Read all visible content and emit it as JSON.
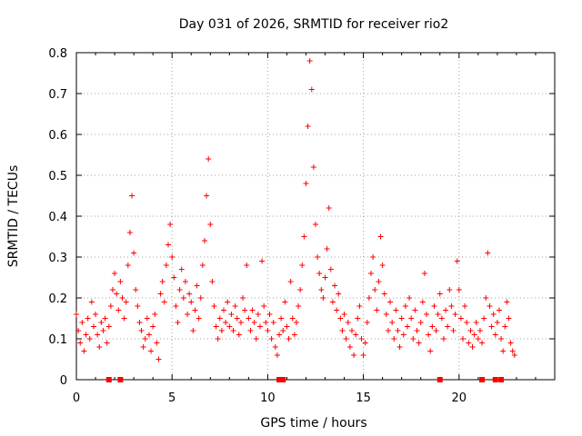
{
  "chart_data": {
    "type": "scatter",
    "title": "Day 031 of 2026, SRMTID for receiver rio2",
    "xlabel": "GPS time / hours",
    "ylabel": "SRMTID / TECUs",
    "xlim": [
      0,
      25
    ],
    "ylim": [
      0,
      0.8
    ],
    "x_ticks": [
      0,
      5,
      10,
      15,
      20
    ],
    "y_ticks": [
      0,
      0.1,
      0.2,
      0.3,
      0.4,
      0.5,
      0.6,
      0.7,
      0.8
    ],
    "x_tick_labels": [
      "0",
      "5",
      "10",
      "15",
      "20"
    ],
    "y_tick_labels": [
      "0",
      "0.1",
      "0.2",
      "0.3",
      "0.4",
      "0.5",
      "0.6",
      "0.7",
      "0.8"
    ],
    "grid": true,
    "marker": "+",
    "color": "#ff0000",
    "baseline_marks": [
      1.7,
      2.3,
      10.6,
      10.8,
      19.0,
      21.2,
      21.9,
      22.2
    ],
    "series": [
      {
        "name": "SRMTID",
        "points": [
          [
            0.0,
            0.16
          ],
          [
            0.1,
            0.12
          ],
          [
            0.2,
            0.09
          ],
          [
            0.3,
            0.14
          ],
          [
            0.4,
            0.07
          ],
          [
            0.5,
            0.11
          ],
          [
            0.6,
            0.15
          ],
          [
            0.7,
            0.1
          ],
          [
            0.8,
            0.19
          ],
          [
            0.9,
            0.13
          ],
          [
            1.0,
            0.16
          ],
          [
            1.1,
            0.11
          ],
          [
            1.2,
            0.08
          ],
          [
            1.3,
            0.14
          ],
          [
            1.4,
            0.12
          ],
          [
            1.5,
            0.15
          ],
          [
            1.6,
            0.09
          ],
          [
            1.7,
            0.13
          ],
          [
            1.8,
            0.18
          ],
          [
            1.9,
            0.22
          ],
          [
            2.0,
            0.26
          ],
          [
            2.1,
            0.21
          ],
          [
            2.2,
            0.17
          ],
          [
            2.3,
            0.24
          ],
          [
            2.4,
            0.2
          ],
          [
            2.5,
            0.15
          ],
          [
            2.6,
            0.19
          ],
          [
            2.7,
            0.28
          ],
          [
            2.8,
            0.36
          ],
          [
            2.9,
            0.45
          ],
          [
            3.0,
            0.31
          ],
          [
            3.1,
            0.22
          ],
          [
            3.2,
            0.18
          ],
          [
            3.3,
            0.14
          ],
          [
            3.4,
            0.12
          ],
          [
            3.5,
            0.08
          ],
          [
            3.6,
            0.1
          ],
          [
            3.7,
            0.15
          ],
          [
            3.8,
            0.11
          ],
          [
            3.9,
            0.07
          ],
          [
            4.0,
            0.13
          ],
          [
            4.1,
            0.16
          ],
          [
            4.2,
            0.09
          ],
          [
            4.3,
            0.05
          ],
          [
            4.4,
            0.21
          ],
          [
            4.5,
            0.24
          ],
          [
            4.6,
            0.19
          ],
          [
            4.7,
            0.28
          ],
          [
            4.8,
            0.33
          ],
          [
            4.9,
            0.38
          ],
          [
            5.0,
            0.3
          ],
          [
            5.1,
            0.25
          ],
          [
            5.2,
            0.18
          ],
          [
            5.3,
            0.14
          ],
          [
            5.4,
            0.22
          ],
          [
            5.5,
            0.27
          ],
          [
            5.6,
            0.2
          ],
          [
            5.7,
            0.24
          ],
          [
            5.8,
            0.16
          ],
          [
            5.9,
            0.21
          ],
          [
            6.0,
            0.19
          ],
          [
            6.1,
            0.12
          ],
          [
            6.2,
            0.17
          ],
          [
            6.3,
            0.23
          ],
          [
            6.4,
            0.15
          ],
          [
            6.5,
            0.2
          ],
          [
            6.6,
            0.28
          ],
          [
            6.7,
            0.34
          ],
          [
            6.8,
            0.45
          ],
          [
            6.9,
            0.54
          ],
          [
            7.0,
            0.38
          ],
          [
            7.1,
            0.24
          ],
          [
            7.2,
            0.18
          ],
          [
            7.3,
            0.13
          ],
          [
            7.4,
            0.1
          ],
          [
            7.5,
            0.15
          ],
          [
            7.6,
            0.12
          ],
          [
            7.7,
            0.17
          ],
          [
            7.8,
            0.14
          ],
          [
            7.9,
            0.19
          ],
          [
            8.0,
            0.13
          ],
          [
            8.1,
            0.16
          ],
          [
            8.2,
            0.12
          ],
          [
            8.3,
            0.18
          ],
          [
            8.4,
            0.15
          ],
          [
            8.5,
            0.11
          ],
          [
            8.6,
            0.14
          ],
          [
            8.7,
            0.2
          ],
          [
            8.8,
            0.17
          ],
          [
            8.9,
            0.28
          ],
          [
            9.0,
            0.15
          ],
          [
            9.1,
            0.12
          ],
          [
            9.2,
            0.17
          ],
          [
            9.3,
            0.14
          ],
          [
            9.4,
            0.1
          ],
          [
            9.5,
            0.16
          ],
          [
            9.6,
            0.13
          ],
          [
            9.7,
            0.29
          ],
          [
            9.8,
            0.18
          ],
          [
            9.9,
            0.14
          ],
          [
            10.0,
            0.12
          ],
          [
            10.1,
            0.16
          ],
          [
            10.2,
            0.1
          ],
          [
            10.3,
            0.14
          ],
          [
            10.4,
            0.08
          ],
          [
            10.5,
            0.06
          ],
          [
            10.6,
            0.11
          ],
          [
            10.7,
            0.15
          ],
          [
            10.8,
            0.12
          ],
          [
            10.9,
            0.19
          ],
          [
            11.0,
            0.13
          ],
          [
            11.1,
            0.1
          ],
          [
            11.2,
            0.24
          ],
          [
            11.3,
            0.15
          ],
          [
            11.4,
            0.11
          ],
          [
            11.5,
            0.14
          ],
          [
            11.6,
            0.18
          ],
          [
            11.7,
            0.22
          ],
          [
            11.8,
            0.28
          ],
          [
            11.9,
            0.35
          ],
          [
            12.0,
            0.48
          ],
          [
            12.1,
            0.62
          ],
          [
            12.2,
            0.78
          ],
          [
            12.3,
            0.71
          ],
          [
            12.4,
            0.52
          ],
          [
            12.5,
            0.38
          ],
          [
            12.6,
            0.3
          ],
          [
            12.7,
            0.26
          ],
          [
            12.8,
            0.22
          ],
          [
            12.9,
            0.2
          ],
          [
            13.0,
            0.25
          ],
          [
            13.1,
            0.32
          ],
          [
            13.2,
            0.42
          ],
          [
            13.3,
            0.27
          ],
          [
            13.4,
            0.19
          ],
          [
            13.5,
            0.23
          ],
          [
            13.6,
            0.17
          ],
          [
            13.7,
            0.21
          ],
          [
            13.8,
            0.15
          ],
          [
            13.9,
            0.12
          ],
          [
            14.0,
            0.16
          ],
          [
            14.1,
            0.1
          ],
          [
            14.2,
            0.14
          ],
          [
            14.3,
            0.08
          ],
          [
            14.4,
            0.12
          ],
          [
            14.5,
            0.06
          ],
          [
            14.6,
            0.11
          ],
          [
            14.7,
            0.15
          ],
          [
            14.8,
            0.18
          ],
          [
            14.9,
            0.1
          ],
          [
            15.0,
            0.06
          ],
          [
            15.1,
            0.09
          ],
          [
            15.2,
            0.14
          ],
          [
            15.3,
            0.2
          ],
          [
            15.4,
            0.26
          ],
          [
            15.5,
            0.3
          ],
          [
            15.6,
            0.22
          ],
          [
            15.7,
            0.17
          ],
          [
            15.8,
            0.24
          ],
          [
            15.9,
            0.35
          ],
          [
            16.0,
            0.28
          ],
          [
            16.1,
            0.21
          ],
          [
            16.2,
            0.16
          ],
          [
            16.3,
            0.12
          ],
          [
            16.4,
            0.19
          ],
          [
            16.5,
            0.14
          ],
          [
            16.6,
            0.1
          ],
          [
            16.7,
            0.17
          ],
          [
            16.8,
            0.12
          ],
          [
            16.9,
            0.08
          ],
          [
            17.0,
            0.15
          ],
          [
            17.1,
            0.11
          ],
          [
            17.2,
            0.18
          ],
          [
            17.3,
            0.13
          ],
          [
            17.4,
            0.2
          ],
          [
            17.5,
            0.15
          ],
          [
            17.6,
            0.1
          ],
          [
            17.7,
            0.17
          ],
          [
            17.8,
            0.12
          ],
          [
            17.9,
            0.09
          ],
          [
            18.0,
            0.14
          ],
          [
            18.1,
            0.19
          ],
          [
            18.2,
            0.26
          ],
          [
            18.3,
            0.16
          ],
          [
            18.4,
            0.11
          ],
          [
            18.5,
            0.07
          ],
          [
            18.6,
            0.13
          ],
          [
            18.7,
            0.18
          ],
          [
            18.8,
            0.12
          ],
          [
            18.9,
            0.16
          ],
          [
            19.0,
            0.21
          ],
          [
            19.1,
            0.15
          ],
          [
            19.2,
            0.1
          ],
          [
            19.3,
            0.17
          ],
          [
            19.4,
            0.13
          ],
          [
            19.5,
            0.22
          ],
          [
            19.6,
            0.18
          ],
          [
            19.7,
            0.12
          ],
          [
            19.8,
            0.16
          ],
          [
            19.9,
            0.29
          ],
          [
            20.0,
            0.22
          ],
          [
            20.1,
            0.15
          ],
          [
            20.2,
            0.1
          ],
          [
            20.3,
            0.18
          ],
          [
            20.4,
            0.14
          ],
          [
            20.5,
            0.09
          ],
          [
            20.6,
            0.12
          ],
          [
            20.7,
            0.08
          ],
          [
            20.8,
            0.11
          ],
          [
            20.9,
            0.14
          ],
          [
            21.0,
            0.1
          ],
          [
            21.1,
            0.12
          ],
          [
            21.2,
            0.09
          ],
          [
            21.3,
            0.15
          ],
          [
            21.4,
            0.2
          ],
          [
            21.5,
            0.31
          ],
          [
            21.6,
            0.18
          ],
          [
            21.7,
            0.13
          ],
          [
            21.8,
            0.16
          ],
          [
            21.9,
            0.11
          ],
          [
            22.0,
            0.14
          ],
          [
            22.1,
            0.17
          ],
          [
            22.2,
            0.1
          ],
          [
            22.3,
            0.07
          ],
          [
            22.4,
            0.13
          ],
          [
            22.5,
            0.19
          ],
          [
            22.6,
            0.15
          ],
          [
            22.7,
            0.09
          ],
          [
            22.8,
            0.07
          ],
          [
            22.9,
            0.06
          ]
        ]
      }
    ]
  }
}
